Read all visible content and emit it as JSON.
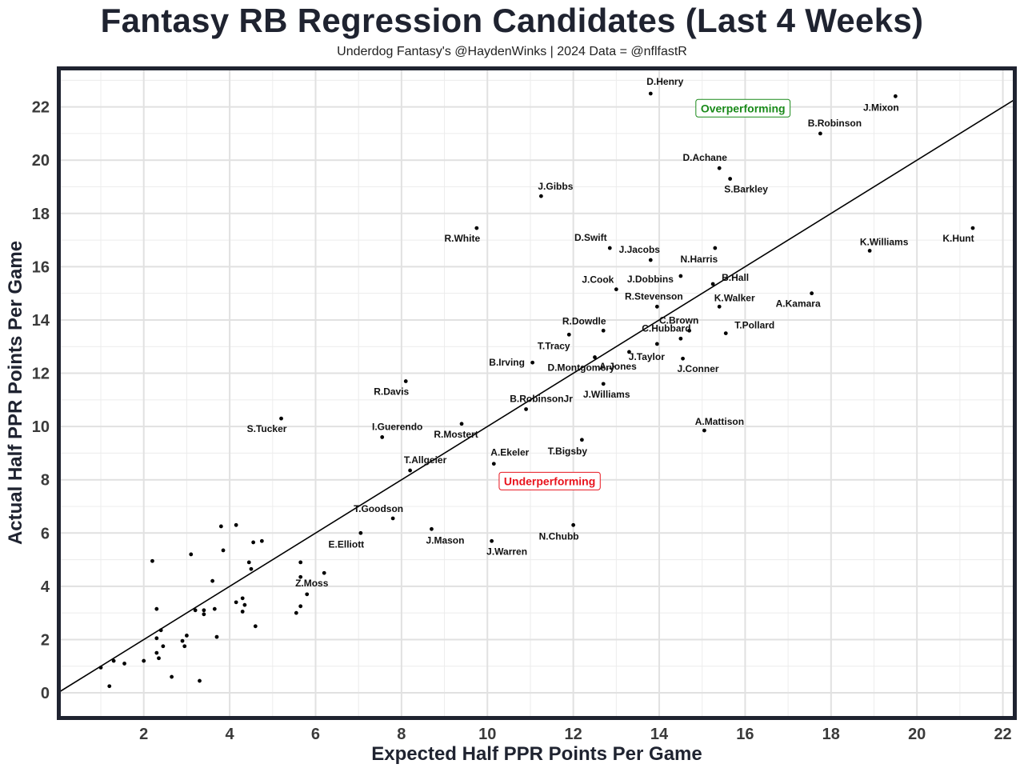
{
  "chart_data": {
    "type": "scatter",
    "title": "Fantasy RB Regression Candidates (Last 4 Weeks)",
    "subtitle": "Underdog Fantasy's @HaydenWinks | 2024 Data = @nflfastR",
    "xlabel": "Expected Half PPR Points Per Game",
    "ylabel": "Actual Half PPR Points Per Game",
    "xlim": [
      0.05,
      22.25
    ],
    "ylim": [
      -0.9,
      23.4
    ],
    "xticks": [
      2,
      4,
      6,
      8,
      10,
      12,
      14,
      16,
      18,
      20,
      22
    ],
    "yticks": [
      0,
      2,
      4,
      6,
      8,
      10,
      12,
      14,
      16,
      18,
      20,
      22
    ],
    "reference_line": "y = x",
    "grid": true,
    "annotations": [
      {
        "text": "Overperforming",
        "x": 15.95,
        "y": 21.95,
        "color": "#1a8a1a"
      },
      {
        "text": "Underperforming",
        "x": 11.45,
        "y": 7.95,
        "color": "#e8141e"
      }
    ],
    "points": [
      {
        "name": "D.Henry",
        "x": 13.8,
        "y": 22.5
      },
      {
        "name": "J.Mixon",
        "x": 19.5,
        "y": 22.4
      },
      {
        "name": "B.Robinson",
        "x": 17.75,
        "y": 21.0
      },
      {
        "name": "D.Achane",
        "x": 15.4,
        "y": 19.7
      },
      {
        "name": "S.Barkley",
        "x": 15.65,
        "y": 19.3
      },
      {
        "name": "J.Gibbs",
        "x": 11.25,
        "y": 18.65
      },
      {
        "name": "R.White",
        "x": 9.75,
        "y": 17.45
      },
      {
        "name": "K.Hunt",
        "x": 21.3,
        "y": 17.45
      },
      {
        "name": "K.Williams",
        "x": 18.9,
        "y": 16.6
      },
      {
        "name": "D.Swift",
        "x": 12.85,
        "y": 16.7
      },
      {
        "name": "N.Harris",
        "x": 15.3,
        "y": 16.7
      },
      {
        "name": "J.Jacobs",
        "x": 13.8,
        "y": 16.25
      },
      {
        "name": "J.Dobbins",
        "x": 14.5,
        "y": 15.65
      },
      {
        "name": "B.Hall",
        "x": 15.25,
        "y": 15.35
      },
      {
        "name": "J.Cook",
        "x": 13.0,
        "y": 15.15
      },
      {
        "name": "A.Kamara",
        "x": 17.55,
        "y": 15.0
      },
      {
        "name": "R.Stevenson",
        "x": 13.95,
        "y": 14.5
      },
      {
        "name": "K.Walker",
        "x": 15.4,
        "y": 14.5
      },
      {
        "name": "R.Dowdle",
        "x": 12.7,
        "y": 13.6
      },
      {
        "name": "C.Brown",
        "x": 14.7,
        "y": 13.6
      },
      {
        "name": "T.Pollard",
        "x": 15.55,
        "y": 13.5
      },
      {
        "name": "T.Tracy",
        "x": 11.9,
        "y": 13.45
      },
      {
        "name": "C.Hubbard",
        "x": 14.5,
        "y": 13.3
      },
      {
        "name": "J.Taylor",
        "x": 13.95,
        "y": 13.1
      },
      {
        "name": "A.Jones",
        "x": 13.3,
        "y": 12.8
      },
      {
        "name": "J.Conner",
        "x": 14.55,
        "y": 12.55
      },
      {
        "name": "D.Montgomery",
        "x": 12.5,
        "y": 12.6
      },
      {
        "name": "B.Irving",
        "x": 11.05,
        "y": 12.4
      },
      {
        "name": "R.Davis",
        "x": 8.1,
        "y": 11.7
      },
      {
        "name": "J.Williams",
        "x": 12.7,
        "y": 11.6
      },
      {
        "name": "B.RobinsonJr",
        "x": 10.9,
        "y": 10.65
      },
      {
        "name": "S.Tucker",
        "x": 5.2,
        "y": 10.3
      },
      {
        "name": "R.Mostert",
        "x": 9.4,
        "y": 10.1
      },
      {
        "name": "A.Mattison",
        "x": 15.05,
        "y": 9.85
      },
      {
        "name": "I.Guerendo",
        "x": 7.55,
        "y": 9.6
      },
      {
        "name": "T.Bigsby",
        "x": 12.2,
        "y": 9.5
      },
      {
        "name": "A.Ekeler",
        "x": 10.15,
        "y": 8.6
      },
      {
        "name": "T.Allgeier",
        "x": 8.2,
        "y": 8.35
      },
      {
        "name": "T.Goodson",
        "x": 7.8,
        "y": 6.55
      },
      {
        "name": "N.Chubb",
        "x": 12.0,
        "y": 6.3
      },
      {
        "name": "J.Mason",
        "x": 8.7,
        "y": 6.15
      },
      {
        "name": "E.Elliott",
        "x": 7.05,
        "y": 6.0
      },
      {
        "name": "J.Warren",
        "x": 10.1,
        "y": 5.7
      },
      {
        "name": "Z.Moss",
        "x": 5.8,
        "y": 3.7
      },
      {
        "name": "",
        "x": 3.8,
        "y": 6.25
      },
      {
        "name": "",
        "x": 4.15,
        "y": 6.3
      },
      {
        "name": "",
        "x": 4.75,
        "y": 5.7
      },
      {
        "name": "",
        "x": 4.55,
        "y": 5.65
      },
      {
        "name": "",
        "x": 3.85,
        "y": 5.35
      },
      {
        "name": "",
        "x": 3.1,
        "y": 5.2
      },
      {
        "name": "",
        "x": 2.2,
        "y": 4.95
      },
      {
        "name": "",
        "x": 4.45,
        "y": 4.9
      },
      {
        "name": "",
        "x": 5.65,
        "y": 4.9
      },
      {
        "name": "",
        "x": 4.5,
        "y": 4.65
      },
      {
        "name": "",
        "x": 6.2,
        "y": 4.5
      },
      {
        "name": "",
        "x": 5.65,
        "y": 4.35
      },
      {
        "name": "",
        "x": 3.6,
        "y": 4.2
      },
      {
        "name": "",
        "x": 4.3,
        "y": 3.55
      },
      {
        "name": "",
        "x": 4.15,
        "y": 3.4
      },
      {
        "name": "",
        "x": 4.35,
        "y": 3.3
      },
      {
        "name": "",
        "x": 5.65,
        "y": 3.25
      },
      {
        "name": "",
        "x": 2.3,
        "y": 3.15
      },
      {
        "name": "",
        "x": 3.65,
        "y": 3.15
      },
      {
        "name": "",
        "x": 3.2,
        "y": 3.1
      },
      {
        "name": "",
        "x": 3.4,
        "y": 3.1
      },
      {
        "name": "",
        "x": 4.3,
        "y": 3.05
      },
      {
        "name": "",
        "x": 5.55,
        "y": 3.0
      },
      {
        "name": "",
        "x": 3.4,
        "y": 2.95
      },
      {
        "name": "",
        "x": 4.6,
        "y": 2.5
      },
      {
        "name": "",
        "x": 2.4,
        "y": 2.35
      },
      {
        "name": "",
        "x": 3.0,
        "y": 2.15
      },
      {
        "name": "",
        "x": 3.7,
        "y": 2.1
      },
      {
        "name": "",
        "x": 2.3,
        "y": 2.05
      },
      {
        "name": "",
        "x": 2.9,
        "y": 1.95
      },
      {
        "name": "",
        "x": 2.45,
        "y": 1.75
      },
      {
        "name": "",
        "x": 2.95,
        "y": 1.75
      },
      {
        "name": "",
        "x": 2.3,
        "y": 1.5
      },
      {
        "name": "",
        "x": 2.35,
        "y": 1.3
      },
      {
        "name": "",
        "x": 1.3,
        "y": 1.2
      },
      {
        "name": "",
        "x": 2.0,
        "y": 1.2
      },
      {
        "name": "",
        "x": 1.55,
        "y": 1.1
      },
      {
        "name": "",
        "x": 1.0,
        "y": 0.95
      },
      {
        "name": "",
        "x": 2.65,
        "y": 0.6
      },
      {
        "name": "",
        "x": 3.3,
        "y": 0.45
      },
      {
        "name": "",
        "x": 1.2,
        "y": 0.25
      }
    ]
  }
}
